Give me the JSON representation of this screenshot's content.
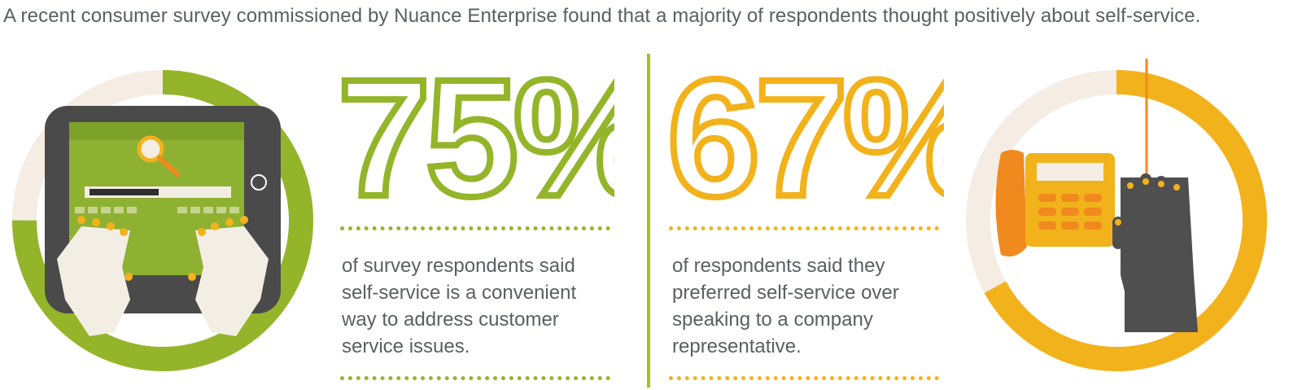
{
  "headline": "A recent consumer survey commissioned by Nuance Enterprise found that a majority of respondents thought positively about self-service.",
  "stats": [
    {
      "value": "75%",
      "percent": 75,
      "description": "of survey respondents said self-service is a convenient way to address customer service issues.",
      "lines": [
        "of survey respondents said",
        "self-service is a convenient",
        "way to address customer",
        "service issues."
      ],
      "color": "#94b52a"
    },
    {
      "value": "67%",
      "percent": 67,
      "description": "of respondents said they preferred self-service over speaking to a company representative.",
      "lines": [
        "of respondents said they",
        "preferred self-service over",
        "speaking to a company",
        "representative."
      ],
      "color": "#f2b21b"
    }
  ],
  "colors": {
    "green": "#94b52a",
    "yellow": "#f2b21b",
    "orange": "#f08a1f",
    "ring_bg": "#f5ede3",
    "dark_gray": "#4f4f4f"
  }
}
